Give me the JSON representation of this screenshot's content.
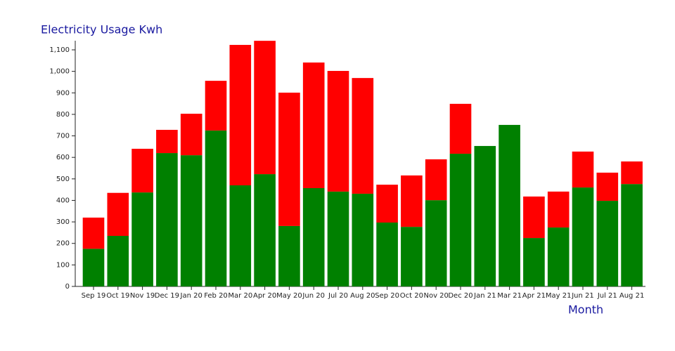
{
  "chart_data": {
    "type": "stacked-bar",
    "title": "Electricity Usage Kwh",
    "x_label": "Month",
    "categories": [
      "Sep 19",
      "Oct 19",
      "Nov 19",
      "Dec 19",
      "Jan 20",
      "Feb 20",
      "Mar 20",
      "Apr 20",
      "May 20",
      "Jun 20",
      "Jul 20",
      "Aug 20",
      "Sep 20",
      "Oct 20",
      "Nov 20",
      "Dec 20",
      "Jan 21",
      "Mar 21",
      "Apr 21",
      "May 21",
      "Jun 21",
      "Jul 21",
      "Aug 21"
    ],
    "series": [
      {
        "color": "#008000",
        "values": [
          175,
          235,
          437,
          620,
          610,
          725,
          470,
          522,
          281,
          457,
          441,
          431,
          297,
          277,
          401,
          617,
          653,
          751,
          225,
          274,
          460,
          398,
          476
        ]
      },
      {
        "color": "#ff0000",
        "values": [
          145,
          200,
          203,
          108,
          193,
          231,
          653,
          620,
          620,
          584,
          561,
          538,
          176,
          239,
          190,
          232,
          0,
          0,
          193,
          167,
          167,
          131,
          105
        ]
      }
    ],
    "ylim": [
      0,
      1100
    ],
    "yticks": [
      0,
      100,
      200,
      300,
      400,
      500,
      600,
      700,
      800,
      900,
      {
        "value": 1000,
        "label": "1,000"
      },
      {
        "value": 1100,
        "label": "1,100"
      }
    ]
  }
}
